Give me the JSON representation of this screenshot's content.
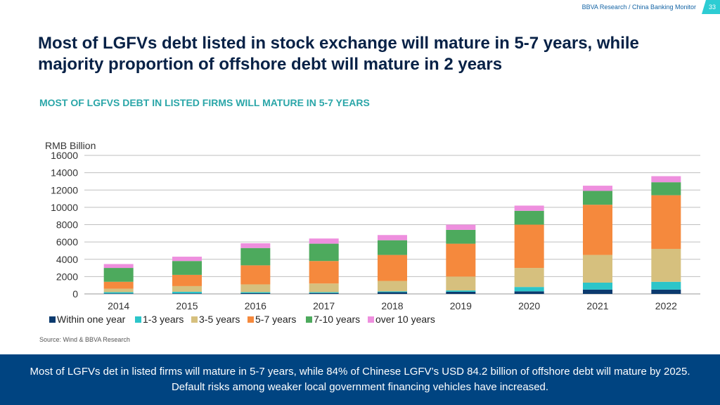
{
  "header": {
    "source_label": "BBVA Research / China Banking Monitor",
    "page_number": "33"
  },
  "title": "Most of LGFVs debt listed in stock exchange will mature in 5-7 years, while majority proportion of offshore debt will mature in 2 years",
  "subtitle": "MOST OF LGFVS DEBT IN LISTED FIRMS WILL MATURE IN 5-7 YEARS",
  "source": "Source: Wind & BBVA Research",
  "footer_text": "Most of LGFVs det in listed firms will mature in 5-7 years, while 84% of Chinese LGFV’s USD 84.2 billion of offshore debt will mature by 2025. Default risks among weaker local government financing vehicles have increased.",
  "chart_data": {
    "type": "bar",
    "stacked": true,
    "title": "",
    "xlabel": "",
    "ylabel": "RMB Billion",
    "ylim": [
      0,
      16000
    ],
    "yticks": [
      0,
      2000,
      4000,
      6000,
      8000,
      10000,
      12000,
      14000,
      16000
    ],
    "grid": true,
    "legend_position": "bottom",
    "categories": [
      "2014",
      "2015",
      "2016",
      "2017",
      "2018",
      "2019",
      "2020",
      "2021",
      "2022"
    ],
    "series": [
      {
        "name": "Within one year",
        "color": "#0b3a6e",
        "values": [
          50,
          60,
          80,
          100,
          200,
          250,
          300,
          500,
          500
        ]
      },
      {
        "name": "1-3 years",
        "color": "#2cc5c9",
        "values": [
          150,
          190,
          120,
          100,
          100,
          150,
          500,
          800,
          900
        ]
      },
      {
        "name": "3-5 years",
        "color": "#d6c07e",
        "values": [
          400,
          650,
          900,
          1000,
          1200,
          1600,
          2200,
          3200,
          3800
        ]
      },
      {
        "name": "5-7 years",
        "color": "#f5893d",
        "values": [
          800,
          1300,
          2200,
          2600,
          3000,
          3800,
          5000,
          5800,
          6200
        ]
      },
      {
        "name": "7-10 years",
        "color": "#4daa5d",
        "values": [
          1600,
          1600,
          2000,
          2000,
          1700,
          1600,
          1600,
          1600,
          1500
        ]
      },
      {
        "name": "over 10 years",
        "color": "#ee8fde",
        "values": [
          450,
          500,
          550,
          600,
          600,
          600,
          600,
          600,
          700
        ]
      }
    ]
  }
}
